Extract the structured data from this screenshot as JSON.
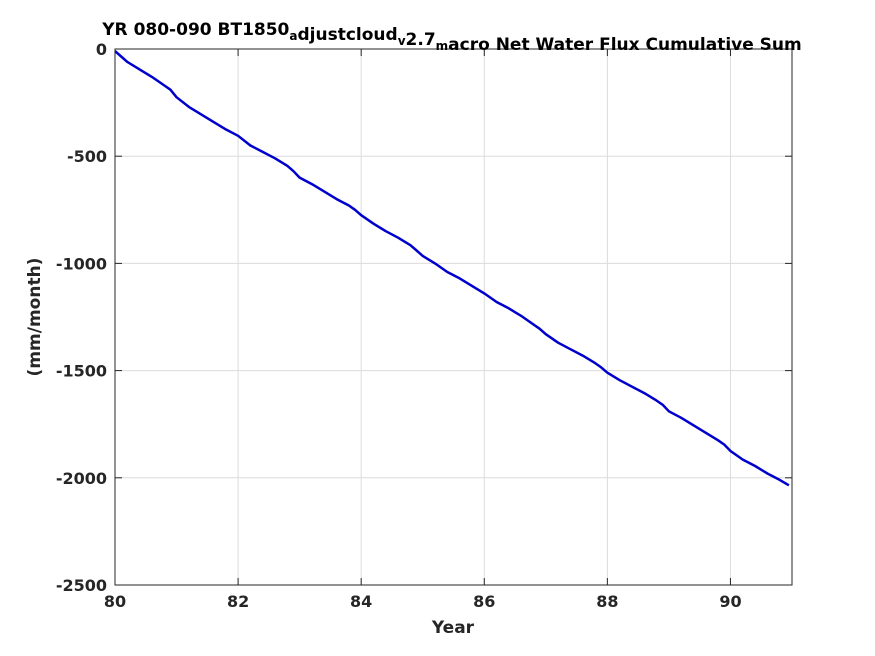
{
  "chart_data": {
    "type": "line",
    "title": {
      "parts": [
        {
          "text": "YR 080-090 BT1850",
          "sub": false
        },
        {
          "text": "a",
          "sub": true
        },
        {
          "text": "djustcloud",
          "sub": false
        },
        {
          "text": "v",
          "sub": true
        },
        {
          "text": "2.7",
          "sub": false
        },
        {
          "text": "m",
          "sub": true
        },
        {
          "text": "acro Net Water Flux Cumulative Sum",
          "sub": false
        }
      ]
    },
    "xlabel": "Year",
    "ylabel": "(mm/month)",
    "xlim": [
      80,
      91
    ],
    "ylim": [
      -2500,
      0
    ],
    "xticks": [
      80,
      82,
      84,
      86,
      88,
      90
    ],
    "yticks": [
      0,
      -500,
      -1000,
      -1500,
      -2000,
      -2500
    ],
    "grid": true,
    "box": true,
    "series": [
      {
        "color": "#0000cc",
        "x": [
          80.0,
          80.1,
          80.2,
          80.4,
          80.6,
          80.8,
          80.9,
          81.0,
          81.2,
          81.4,
          81.6,
          81.8,
          82.0,
          82.2,
          82.4,
          82.6,
          82.8,
          82.9,
          83.0,
          83.2,
          83.4,
          83.6,
          83.8,
          83.9,
          84.0,
          84.2,
          84.4,
          84.6,
          84.8,
          84.9,
          85.0,
          85.2,
          85.4,
          85.6,
          85.8,
          86.0,
          86.2,
          86.4,
          86.6,
          86.8,
          86.9,
          87.0,
          87.2,
          87.4,
          87.6,
          87.8,
          87.9,
          88.0,
          88.2,
          88.4,
          88.6,
          88.8,
          88.9,
          89.0,
          89.2,
          89.4,
          89.6,
          89.8,
          89.9,
          90.0,
          90.2,
          90.4,
          90.6,
          90.8,
          90.95
        ],
        "y": [
          -10,
          -35,
          -60,
          -95,
          -130,
          -170,
          -190,
          -225,
          -270,
          -305,
          -340,
          -375,
          -405,
          -450,
          -480,
          -510,
          -545,
          -570,
          -600,
          -630,
          -665,
          -700,
          -730,
          -750,
          -775,
          -815,
          -850,
          -880,
          -915,
          -940,
          -965,
          -1000,
          -1040,
          -1070,
          -1105,
          -1140,
          -1180,
          -1210,
          -1245,
          -1285,
          -1305,
          -1330,
          -1370,
          -1400,
          -1430,
          -1465,
          -1485,
          -1510,
          -1545,
          -1575,
          -1605,
          -1640,
          -1660,
          -1690,
          -1720,
          -1755,
          -1790,
          -1825,
          -1845,
          -1875,
          -1915,
          -1945,
          -1980,
          -2010,
          -2035
        ]
      }
    ]
  }
}
